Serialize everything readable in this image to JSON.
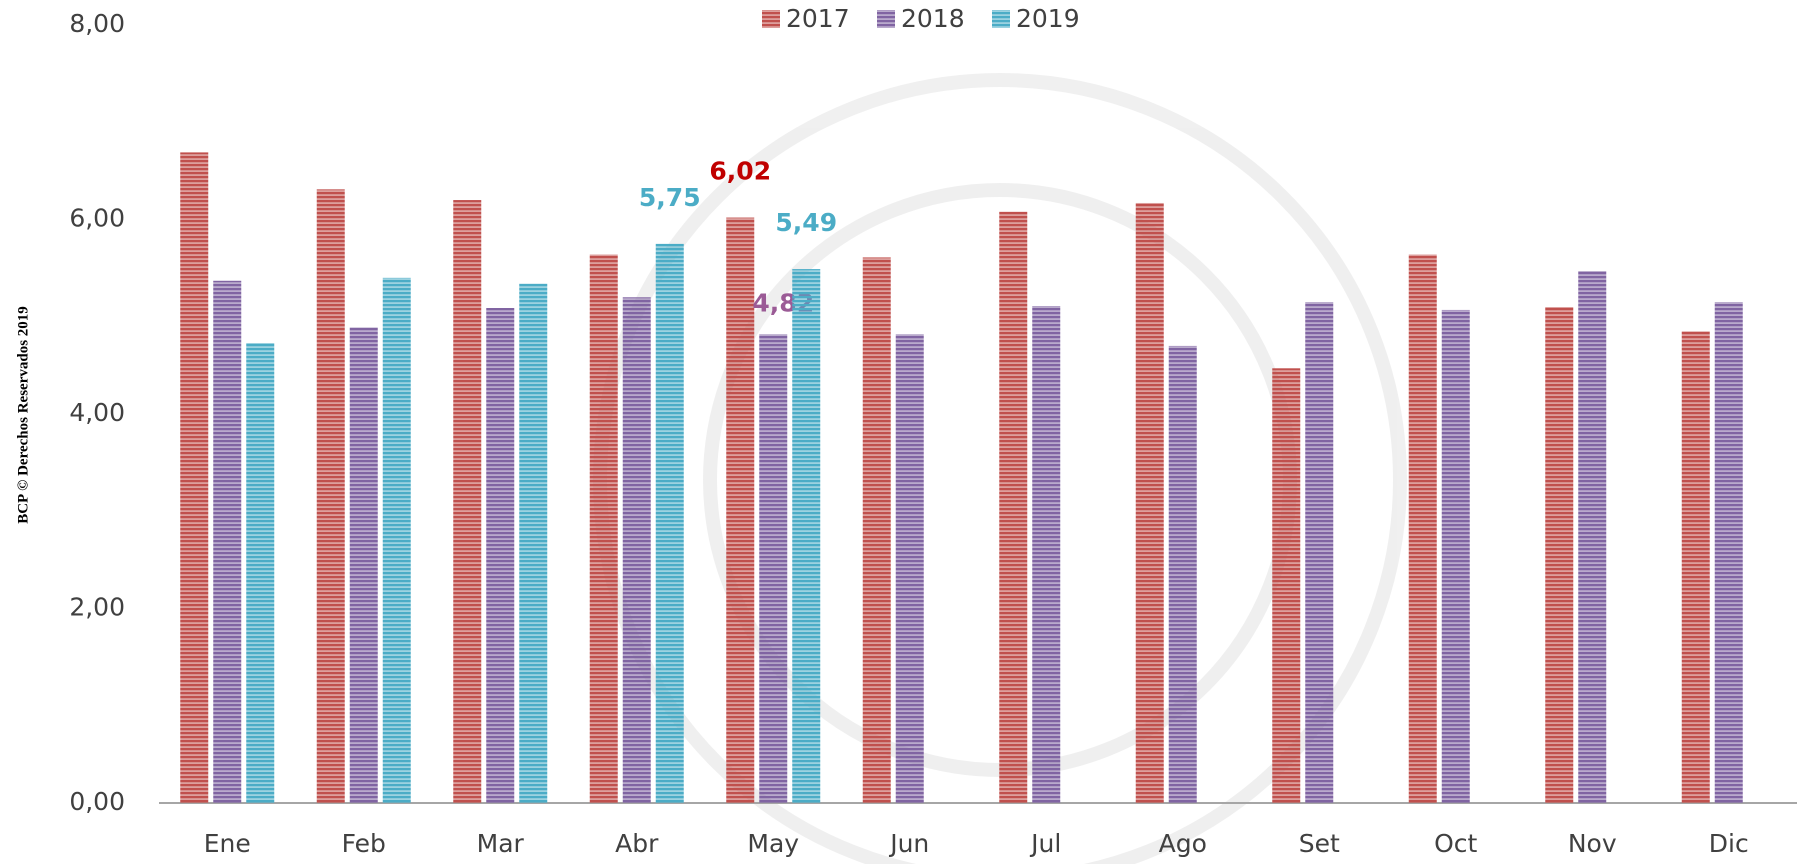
{
  "chart_data": {
    "type": "bar",
    "source": "BCP © Derechos Reservados 2019",
    "categories": [
      "Ene",
      "Feb",
      "Mar",
      "Abr",
      "May",
      "Jun",
      "Jul",
      "Ago",
      "Set",
      "Oct",
      "Nov",
      "Dic"
    ],
    "series": [
      {
        "name": "2017",
        "color": "#c0504d",
        "label_color": "#c00000",
        "values": [
          6.69,
          6.31,
          6.2,
          5.64,
          6.02,
          5.61,
          6.08,
          6.17,
          4.47,
          5.64,
          5.1,
          4.85
        ],
        "value_labels": [
          null,
          null,
          null,
          null,
          "6,02",
          null,
          null,
          null,
          null,
          null,
          null,
          null
        ]
      },
      {
        "name": "2018",
        "color": "#8064a2",
        "label_color": "#9b5b96",
        "values": [
          5.37,
          4.89,
          5.09,
          5.2,
          4.82,
          4.82,
          5.11,
          4.7,
          5.15,
          5.07,
          5.47,
          5.15
        ],
        "value_labels": [
          null,
          null,
          null,
          null,
          "4,82",
          null,
          null,
          null,
          null,
          null,
          null,
          null
        ]
      },
      {
        "name": "2019",
        "color": "#4bacc6",
        "label_color": "#4bacc6",
        "values": [
          4.73,
          5.4,
          5.34,
          5.75,
          5.49,
          null,
          null,
          null,
          null,
          null,
          null,
          null
        ],
        "value_labels": [
          null,
          null,
          null,
          "5,75",
          "5,49",
          null,
          null,
          null,
          null,
          null,
          null,
          null
        ]
      }
    ],
    "ylim": [
      0,
      8
    ],
    "yticks": [
      {
        "value": 0,
        "label": "0,00"
      },
      {
        "value": 2,
        "label": "2,00"
      },
      {
        "value": 4,
        "label": "4,00"
      },
      {
        "value": 6,
        "label": "6,00"
      },
      {
        "value": 8,
        "label": "8,00"
      }
    ],
    "legend": "top",
    "grid": false
  }
}
